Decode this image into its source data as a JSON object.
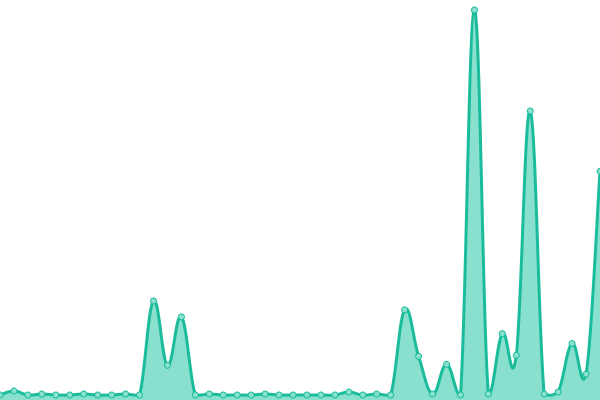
{
  "chart_data": {
    "type": "area",
    "title": "",
    "xlabel": "",
    "ylabel": "",
    "grid": false,
    "legend": "none",
    "ylim": [
      0,
      392
    ],
    "x": [
      0,
      1,
      2,
      3,
      4,
      5,
      6,
      7,
      8,
      9,
      10,
      11,
      12,
      13,
      14,
      15,
      16,
      17,
      18,
      19,
      20,
      21,
      22,
      23,
      24,
      25,
      26,
      27,
      28,
      29,
      30,
      31,
      32,
      33,
      34,
      35,
      36,
      37,
      38,
      39,
      40,
      41,
      42,
      43
    ],
    "values": [
      1,
      5,
      1,
      2,
      1,
      1,
      2,
      1,
      1,
      2,
      1,
      96,
      31,
      80,
      1,
      2,
      1,
      1,
      1,
      2,
      1,
      1,
      1,
      1,
      1,
      4,
      1,
      2,
      1,
      87,
      40,
      2,
      32,
      1,
      390,
      2,
      63,
      41,
      288,
      2,
      4,
      53,
      22,
      227
    ],
    "colors": {
      "line": "#1abc9c",
      "fill": "#8ae0cf",
      "point_fill": "#8ae0cf"
    }
  }
}
